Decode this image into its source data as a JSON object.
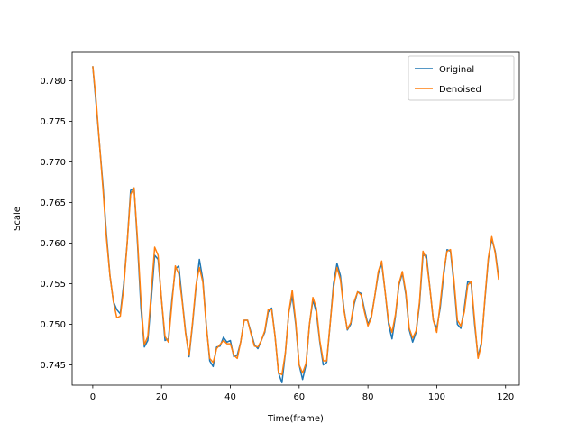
{
  "chart_data": {
    "type": "line",
    "xlabel": "Time(frame)",
    "ylabel": "Scale",
    "xlim": [
      -6,
      124
    ],
    "ylim": [
      0.7425,
      0.7835
    ],
    "xticks": [
      0,
      20,
      40,
      60,
      80,
      100,
      120
    ],
    "yticks": [
      0.745,
      0.75,
      0.755,
      0.76,
      0.765,
      0.77,
      0.775,
      0.78
    ],
    "ytick_labels": [
      "0.745",
      "0.750",
      "0.755",
      "0.760",
      "0.765",
      "0.770",
      "0.775",
      "0.780"
    ],
    "legend_position": "upper-right",
    "grid": false,
    "series": [
      {
        "name": "Original",
        "color": "#1f77b4",
        "values": [
          0.7818,
          0.777,
          0.772,
          0.767,
          0.761,
          0.756,
          0.7528,
          0.7518,
          0.7513,
          0.755,
          0.76,
          0.7665,
          0.7668,
          0.76,
          0.752,
          0.7472,
          0.748,
          0.753,
          0.7585,
          0.758,
          0.753,
          0.748,
          0.7482,
          0.753,
          0.7568,
          0.7572,
          0.753,
          0.749,
          0.746,
          0.75,
          0.7545,
          0.758,
          0.7555,
          0.75,
          0.7455,
          0.7448,
          0.7472,
          0.7473,
          0.7484,
          0.7478,
          0.748,
          0.746,
          0.7462,
          0.7478,
          0.7505,
          0.7505,
          0.749,
          0.7475,
          0.747,
          0.748,
          0.749,
          0.7515,
          0.752,
          0.7485,
          0.744,
          0.7428,
          0.7465,
          0.7515,
          0.7535,
          0.75,
          0.745,
          0.7432,
          0.745,
          0.75,
          0.753,
          0.7515,
          0.7478,
          0.745,
          0.7453,
          0.75,
          0.755,
          0.7575,
          0.756,
          0.752,
          0.7493,
          0.75,
          0.7525,
          0.754,
          0.7538,
          0.7518,
          0.75,
          0.751,
          0.7535,
          0.7562,
          0.7575,
          0.754,
          0.75,
          0.7482,
          0.751,
          0.7548,
          0.7563,
          0.7537,
          0.7493,
          0.7478,
          0.749,
          0.7525,
          0.7585,
          0.7585,
          0.7545,
          0.7505,
          0.7495,
          0.752,
          0.756,
          0.7592,
          0.759,
          0.755,
          0.75,
          0.7495,
          0.752,
          0.7553,
          0.755,
          0.75,
          0.746,
          0.7478,
          0.753,
          0.758,
          0.7605,
          0.759,
          0.7558
        ]
      },
      {
        "name": "Denoised",
        "color": "#ff7f0e",
        "values": [
          0.7818,
          0.7775,
          0.772,
          0.7665,
          0.7605,
          0.756,
          0.7528,
          0.7508,
          0.751,
          0.7545,
          0.76,
          0.766,
          0.7668,
          0.7605,
          0.753,
          0.7475,
          0.7485,
          0.754,
          0.7595,
          0.7585,
          0.753,
          0.7485,
          0.7478,
          0.7525,
          0.7572,
          0.7562,
          0.7528,
          0.7488,
          0.7462,
          0.7502,
          0.7548,
          0.757,
          0.7552,
          0.7498,
          0.7458,
          0.7453,
          0.747,
          0.7475,
          0.748,
          0.7476,
          0.7476,
          0.7462,
          0.7458,
          0.7478,
          0.7505,
          0.7505,
          0.7488,
          0.7473,
          0.7472,
          0.748,
          0.7492,
          0.7518,
          0.7518,
          0.7485,
          0.744,
          0.7438,
          0.7465,
          0.7515,
          0.7542,
          0.7503,
          0.745,
          0.744,
          0.7452,
          0.75,
          0.7533,
          0.752,
          0.748,
          0.7455,
          0.7455,
          0.75,
          0.7545,
          0.757,
          0.7555,
          0.7518,
          0.7494,
          0.7502,
          0.7528,
          0.754,
          0.7536,
          0.7515,
          0.7498,
          0.7508,
          0.7535,
          0.7565,
          0.7578,
          0.754,
          0.7503,
          0.749,
          0.7512,
          0.755,
          0.7565,
          0.754,
          0.7495,
          0.7483,
          0.7492,
          0.7528,
          0.759,
          0.758,
          0.7545,
          0.7505,
          0.749,
          0.7525,
          0.7565,
          0.759,
          0.7592,
          0.7555,
          0.7505,
          0.7498,
          0.7515,
          0.7548,
          0.7553,
          0.7505,
          0.7458,
          0.7475,
          0.7532,
          0.7582,
          0.7608,
          0.7588,
          0.7555
        ]
      }
    ]
  }
}
